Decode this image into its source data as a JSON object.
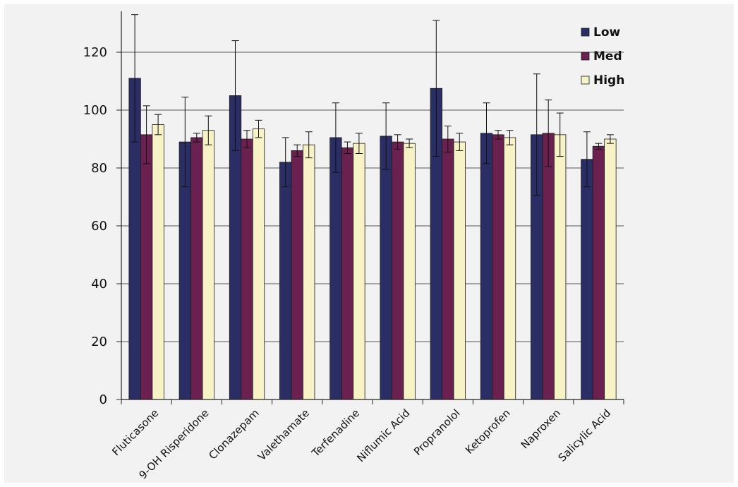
{
  "chart_data": {
    "type": "bar",
    "title": "",
    "xlabel": "",
    "ylabel": "",
    "ylim": [
      0,
      130
    ],
    "yticks": [
      0,
      20,
      40,
      60,
      80,
      100,
      120
    ],
    "grid": true,
    "legend_position": "top-right",
    "categories": [
      "Fluticasone",
      "9-OH Risperidone",
      "Clonazepam",
      "Valethamate",
      "Terfenadine",
      "Niflumic Acid",
      "Propranolol",
      "Ketoprofen",
      "Naproxen",
      "Salicylic Acid"
    ],
    "series": [
      {
        "name": "Low",
        "color": "#2b2e64",
        "values": [
          111,
          89,
          105,
          82,
          90.5,
          91,
          107.5,
          92,
          91.5,
          83
        ],
        "errors": [
          22,
          15.5,
          19,
          8.5,
          12,
          11.5,
          23.5,
          10.5,
          21,
          9.5
        ]
      },
      {
        "name": "Med",
        "color": "#6b2150",
        "values": [
          91.5,
          90.5,
          90,
          86,
          87,
          89,
          90,
          91.5,
          92,
          87.5
        ],
        "errors": [
          10,
          1.5,
          3,
          2,
          2,
          2.5,
          4.5,
          1.5,
          11.5,
          1
        ]
      },
      {
        "name": "High",
        "color": "#f7f3c6",
        "values": [
          95,
          93,
          93.5,
          88,
          88.5,
          88.5,
          89,
          90.5,
          91.5,
          90
        ],
        "errors": [
          3.5,
          5,
          3,
          4.5,
          3.5,
          1.5,
          3,
          2.5,
          7.5,
          1.5
        ]
      }
    ]
  }
}
